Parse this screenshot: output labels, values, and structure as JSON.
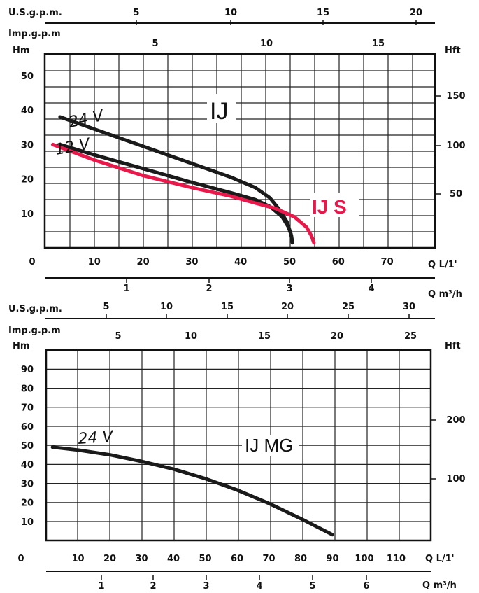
{
  "chart_data": [
    {
      "type": "line",
      "title": "IJ",
      "xlabel": "Q L/1'",
      "ylabel": "Hm",
      "x_ticks": [
        0,
        10,
        20,
        30,
        40,
        50,
        60,
        70
      ],
      "y_ticks": [
        10,
        20,
        30,
        40,
        50
      ],
      "xlim": [
        0,
        80
      ],
      "ylim": [
        0,
        56.3
      ],
      "grid": true,
      "top_scales": {
        "usgpm": {
          "label": "U.S.g.p.m.",
          "ticks": [
            "5",
            "10",
            "15",
            "20"
          ]
        },
        "impgpm": {
          "label": "Imp.g.p.m",
          "ticks": [
            "5",
            "10",
            "15"
          ]
        }
      },
      "right_scale": {
        "label": "Hft",
        "ticks": [
          "150",
          "100",
          "50"
        ]
      },
      "bottom_scale": {
        "label": "Q m³/h",
        "ticks": [
          "1",
          "2",
          "3",
          "4"
        ]
      },
      "series": [
        {
          "name": "24 V",
          "color": "#1a1a1a",
          "x": [
            3,
            10,
            20,
            30,
            38,
            43,
            46,
            48,
            49.5,
            50.3,
            50.6
          ],
          "y": [
            38,
            34.5,
            29.5,
            24.5,
            20.5,
            17.5,
            14.5,
            11,
            7.5,
            4,
            1.5
          ]
        },
        {
          "name": "12 V",
          "color": "#1a1a1a",
          "x": [
            3,
            10,
            20,
            30,
            38,
            43,
            46,
            48.5,
            49.8,
            50.4,
            50.6
          ],
          "y": [
            30,
            27,
            23,
            19,
            16,
            14,
            12,
            9,
            6,
            3.5,
            1.5
          ]
        },
        {
          "name": "IJ S",
          "color": "#e8194a",
          "x": [
            1.5,
            10,
            20,
            30,
            38,
            43,
            47,
            51,
            53.5,
            54.5,
            55
          ],
          "y": [
            30,
            25.5,
            21,
            17.5,
            15,
            13,
            11.5,
            9,
            6,
            3.5,
            1.5
          ]
        }
      ]
    },
    {
      "type": "line",
      "title": "IJ MG",
      "xlabel": "Q L/1'",
      "ylabel": "Hm",
      "x_ticks": [
        0,
        10,
        20,
        30,
        40,
        50,
        60,
        70,
        80,
        90,
        100,
        110
      ],
      "y_ticks": [
        10,
        20,
        30,
        40,
        50,
        60,
        70,
        80,
        90
      ],
      "xlim": [
        0,
        120
      ],
      "ylim": [
        0,
        100
      ],
      "grid": true,
      "top_scales": {
        "usgpm": {
          "label": "U.S.g.p.m.",
          "ticks": [
            "5",
            "10",
            "15",
            "20",
            "25",
            "30"
          ]
        },
        "impgpm": {
          "label": "Imp.g.p.m",
          "ticks": [
            "5",
            "10",
            "15",
            "20",
            "25"
          ]
        }
      },
      "right_scale": {
        "label": "Hft",
        "ticks": [
          "200",
          "100"
        ]
      },
      "bottom_scale": {
        "label": "Q m³/h",
        "ticks": [
          "1",
          "2",
          "3",
          "4",
          "5",
          "6"
        ]
      },
      "series": [
        {
          "name": "24 V",
          "color": "#1a1a1a",
          "x": [
            2,
            10,
            20,
            30,
            40,
            50,
            60,
            70,
            80,
            90
          ],
          "y": [
            49,
            47.5,
            45,
            41.5,
            37.5,
            32.5,
            26.5,
            19.5,
            11.5,
            3
          ]
        }
      ]
    }
  ]
}
